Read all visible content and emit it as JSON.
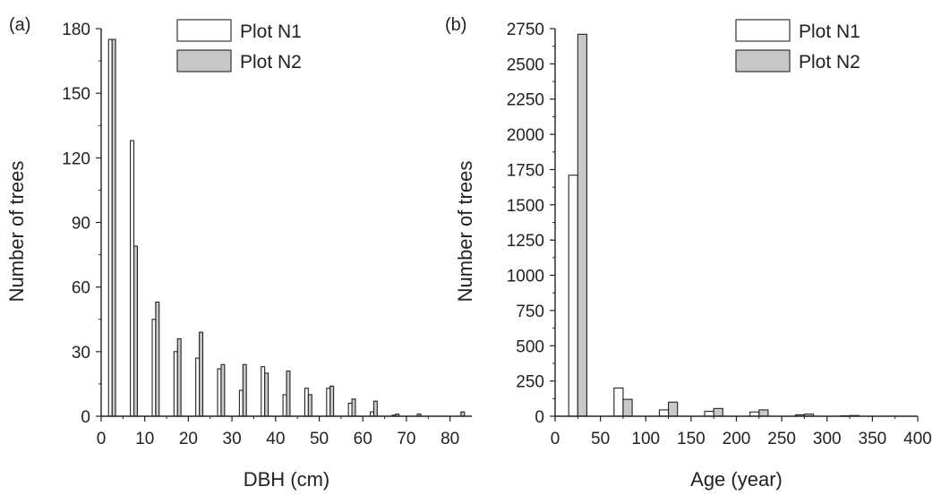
{
  "chart_data": [
    {
      "type": "bar",
      "panel_label": "(a)",
      "xlabel": "DBH (cm)",
      "ylabel": "Number of trees",
      "xlim": [
        0,
        85
      ],
      "ylim": [
        0,
        180
      ],
      "xticks": [
        0,
        10,
        20,
        30,
        40,
        50,
        60,
        70,
        80
      ],
      "yticks": [
        0,
        30,
        60,
        90,
        120,
        150,
        180
      ],
      "x": [
        2.5,
        7.5,
        12.5,
        17.5,
        22.5,
        27.5,
        32.5,
        37.5,
        42.5,
        47.5,
        52.5,
        57.5,
        62.5,
        67.5,
        72.5,
        82.5
      ],
      "bar_width": 0.8,
      "grid": false,
      "legend_position": "top",
      "series": [
        {
          "name": "Plot N1",
          "color": "#ffffff",
          "values": [
            175,
            128,
            45,
            30,
            27,
            22,
            12,
            23,
            10,
            13,
            13,
            6,
            2,
            0.5,
            0,
            0
          ]
        },
        {
          "name": "Plot N2",
          "color": "#c8c8c8",
          "values": [
            175,
            79,
            53,
            36,
            39,
            24,
            24,
            20,
            21,
            10,
            14,
            8,
            7,
            1,
            1,
            2
          ]
        }
      ]
    },
    {
      "type": "bar",
      "panel_label": "(b)",
      "xlabel": "Age (year)",
      "ylabel": "Number of trees",
      "xlim": [
        0,
        400
      ],
      "ylim": [
        0,
        2750
      ],
      "xticks": [
        0,
        50,
        100,
        150,
        200,
        250,
        300,
        350,
        400
      ],
      "yticks": [
        0,
        250,
        500,
        750,
        1000,
        1250,
        1500,
        1750,
        2000,
        2250,
        2500,
        2750
      ],
      "x": [
        25,
        75,
        125,
        175,
        225,
        275,
        325
      ],
      "bar_width": 10,
      "grid": false,
      "legend_position": "top-right",
      "series": [
        {
          "name": "Plot N1",
          "color": "#ffffff",
          "values": [
            1710,
            200,
            45,
            35,
            30,
            10,
            3
          ]
        },
        {
          "name": "Plot N2",
          "color": "#c8c8c8",
          "values": [
            2710,
            120,
            100,
            55,
            45,
            15,
            5
          ]
        }
      ]
    }
  ]
}
